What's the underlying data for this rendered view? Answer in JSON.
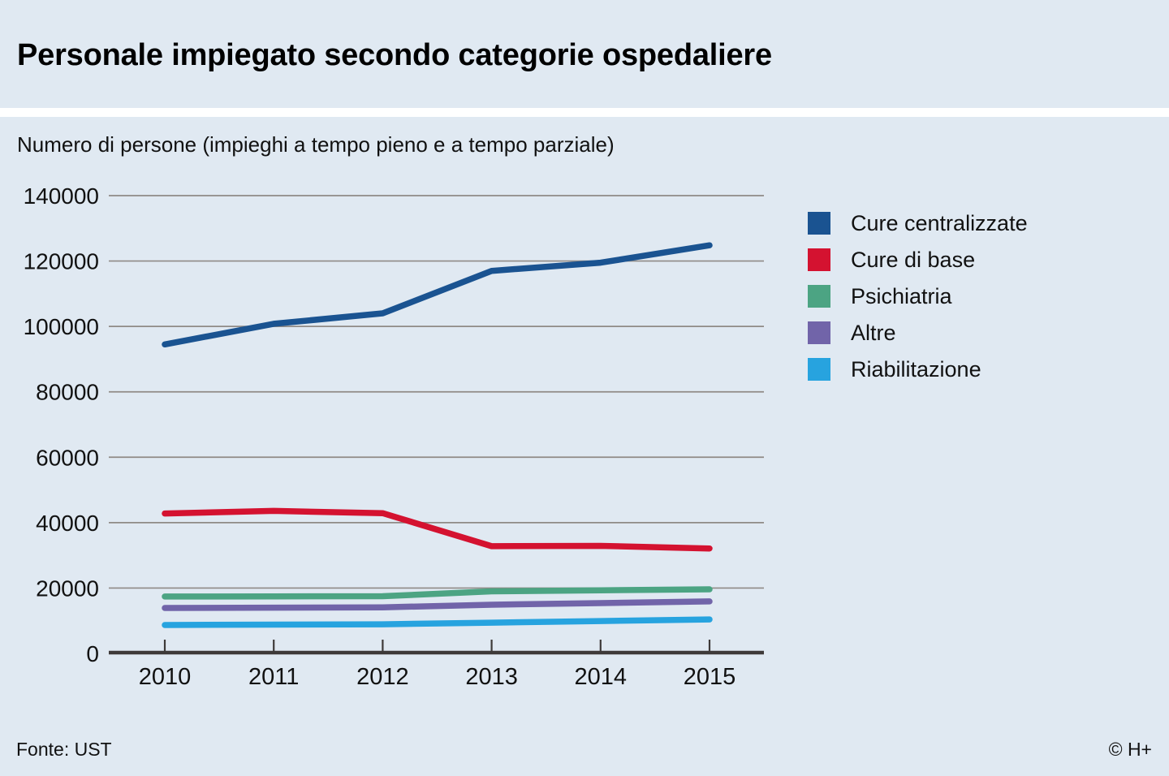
{
  "header": {
    "title": "Personale impiegato secondo categorie ospedaliere"
  },
  "subtitle": "Numero di persone (impieghi a tempo pieno e a tempo parziale)",
  "footer": {
    "source": "Fonte: UST",
    "copyright": "© H+"
  },
  "colors": {
    "background": "#e0e9f2",
    "separator": "#ffffff",
    "gridline": "#8f8a86",
    "axis": "#3e3a39",
    "text": "#111111"
  },
  "chart_data": {
    "type": "line",
    "title": "Personale impiegato secondo categorie ospedaliere",
    "ylabel": "Numero di persone (impieghi a tempo pieno e a tempo parziale)",
    "xlabel": "",
    "x": [
      2010,
      2011,
      2012,
      2013,
      2014,
      2015
    ],
    "yticks": [
      0,
      20000,
      40000,
      60000,
      80000,
      100000,
      120000,
      140000
    ],
    "ylim": [
      0,
      140000
    ],
    "grid": true,
    "legend_position": "right",
    "series": [
      {
        "name": "Cure centralizzate",
        "color": "#1a5391",
        "values": [
          94500,
          100800,
          104000,
          117000,
          119500,
          124800
        ]
      },
      {
        "name": "Cure di base",
        "color": "#d41230",
        "values": [
          42800,
          43600,
          42900,
          32800,
          32900,
          32100
        ]
      },
      {
        "name": "Psichiatria",
        "color": "#4ca483",
        "values": [
          17400,
          17450,
          17500,
          19000,
          19300,
          19600
        ]
      },
      {
        "name": "Altre",
        "color": "#7164a9",
        "values": [
          13900,
          14000,
          14100,
          14900,
          15400,
          15900
        ]
      },
      {
        "name": "Riabilitazione",
        "color": "#27a3df",
        "values": [
          8700,
          8800,
          8900,
          9400,
          9900,
          10400
        ]
      }
    ]
  }
}
